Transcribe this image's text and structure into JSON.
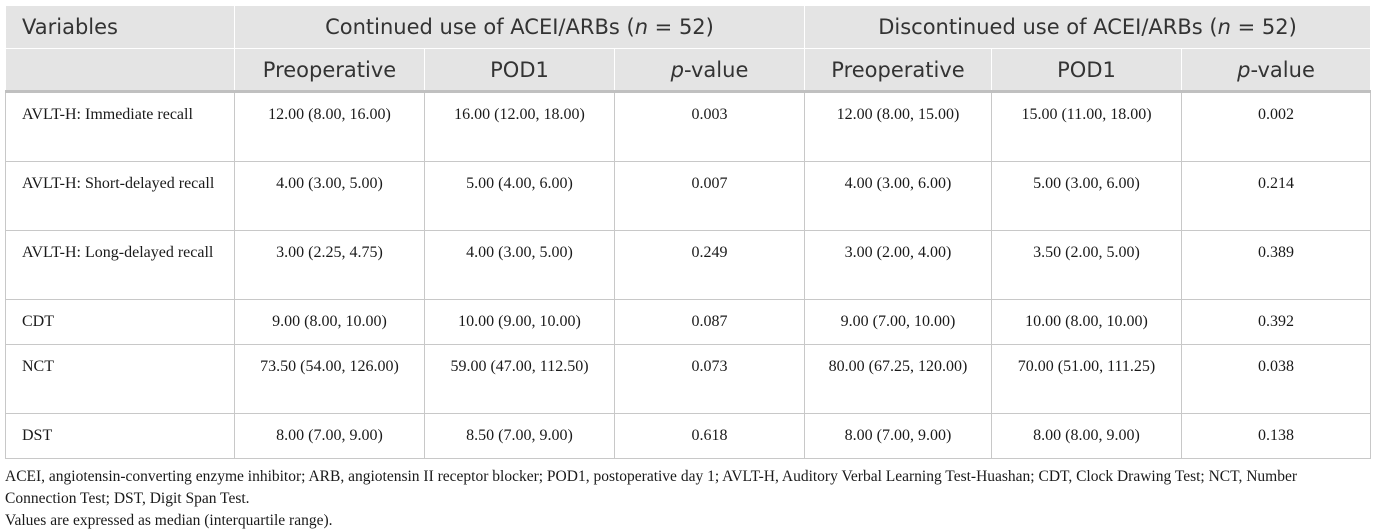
{
  "header": {
    "variables_label": "Variables",
    "group1_prefix": "Continued use of ACEI/ARBs (",
    "group1_n": "n",
    "group1_suffix": " = 52)",
    "group2_prefix": "Discontinued use of ACEI/ARBs (",
    "group2_n": "n",
    "group2_suffix": " = 52)",
    "sub": {
      "preop": "Preoperative",
      "pod1": "POD1",
      "p_italic": "p",
      "p_rest": "-value"
    }
  },
  "rows": [
    {
      "variable": "AVLT-H: Immediate recall",
      "c_pre": "12.00 (8.00, 16.00)",
      "c_pod1": "16.00 (12.00, 18.00)",
      "c_p": "0.003",
      "d_pre": "12.00 (8.00, 15.00)",
      "d_pod1": "15.00 (11.00, 18.00)",
      "d_p": "0.002"
    },
    {
      "variable": "AVLT-H: Short-delayed recall",
      "c_pre": "4.00 (3.00, 5.00)",
      "c_pod1": "5.00 (4.00, 6.00)",
      "c_p": "0.007",
      "d_pre": "4.00 (3.00, 6.00)",
      "d_pod1": "5.00 (3.00, 6.00)",
      "d_p": "0.214"
    },
    {
      "variable": "AVLT-H: Long-delayed recall",
      "c_pre": "3.00 (2.25, 4.75)",
      "c_pod1": "4.00 (3.00, 5.00)",
      "c_p": "0.249",
      "d_pre": "3.00 (2.00, 4.00)",
      "d_pod1": "3.50 (2.00, 5.00)",
      "d_p": "0.389"
    },
    {
      "variable": "CDT",
      "c_pre": "9.00 (8.00, 10.00)",
      "c_pod1": "10.00 (9.00, 10.00)",
      "c_p": "0.087",
      "d_pre": "9.00 (7.00, 10.00)",
      "d_pod1": "10.00 (8.00, 10.00)",
      "d_p": "0.392"
    },
    {
      "variable": "NCT",
      "c_pre": "73.50 (54.00, 126.00)",
      "c_pod1": "59.00 (47.00, 112.50)",
      "c_p": "0.073",
      "d_pre": "80.00 (67.25, 120.00)",
      "d_pod1": "70.00 (51.00, 111.25)",
      "d_p": "0.038"
    },
    {
      "variable": "DST",
      "c_pre": "8.00 (7.00, 9.00)",
      "c_pod1": "8.50 (7.00, 9.00)",
      "c_p": "0.618",
      "d_pre": "8.00 (7.00, 9.00)",
      "d_pod1": "8.00 (8.00, 9.00)",
      "d_p": "0.138"
    }
  ],
  "notes": {
    "abbreviations": "ACEI, angiotensin-converting enzyme inhibitor; ARB, angiotensin II receptor blocker; POD1, postoperative day 1; AVLT-H, Auditory Verbal Learning Test-Huashan; CDT, Clock Drawing Test; NCT, Number Connection Test; DST, Digit Span Test.",
    "values_note": "Values are expressed as median (interquartile range)."
  }
}
